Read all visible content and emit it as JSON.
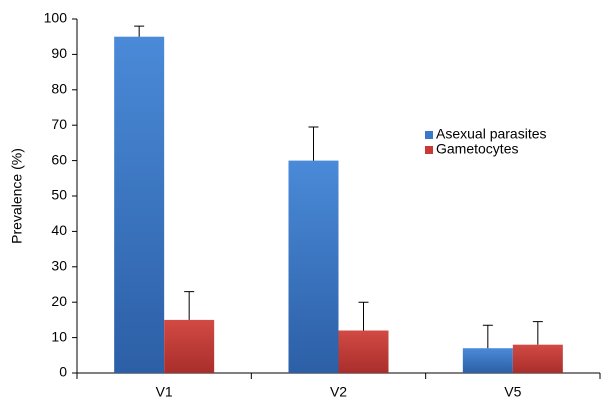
{
  "chart_data": {
    "type": "bar",
    "y_label": "Prevalence (%)",
    "categories": [
      "V1",
      "V2",
      "V5"
    ],
    "series": [
      {
        "name": "Asexual parasites",
        "color": "#3a78c9",
        "values": [
          95,
          60,
          7
        ],
        "errors": [
          3,
          9.5,
          6.5
        ]
      },
      {
        "name": "Gametocytes",
        "color": "#c73a36",
        "values": [
          15,
          12,
          8
        ],
        "errors": [
          8,
          8,
          6.5
        ]
      }
    ],
    "ylim": [
      0,
      100
    ],
    "yticks": [
      0,
      10,
      20,
      30,
      40,
      50,
      60,
      70,
      80,
      90,
      100
    ],
    "grid": false,
    "legend": "right"
  }
}
